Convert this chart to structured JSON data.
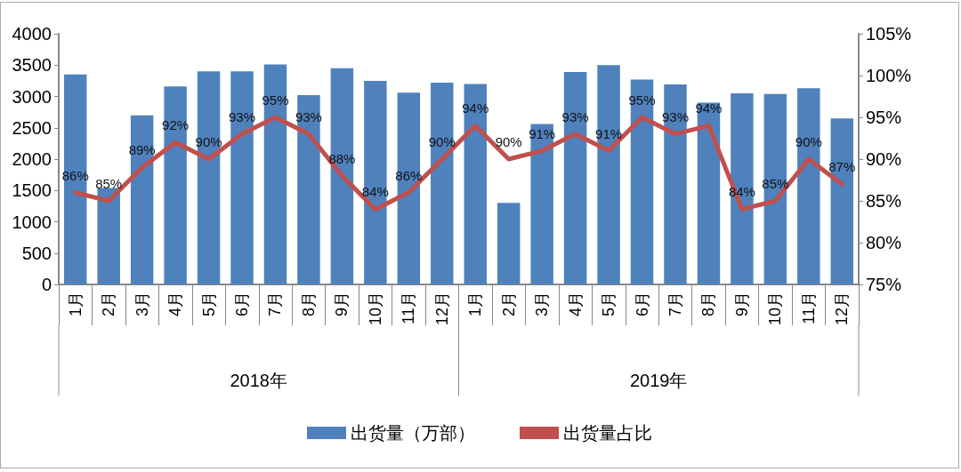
{
  "chart_data": {
    "type": "bar",
    "categories": [
      "1月",
      "2月",
      "3月",
      "4月",
      "5月",
      "6月",
      "7月",
      "8月",
      "9月",
      "10月",
      "11月",
      "12月",
      "1月",
      "2月",
      "3月",
      "4月",
      "5月",
      "6月",
      "7月",
      "8月",
      "9月",
      "10月",
      "11月",
      "12月"
    ],
    "series": [
      {
        "name": "出货量（万部）",
        "color": "#4f81bd",
        "values": [
          3350,
          1540,
          2700,
          3160,
          3400,
          3400,
          3510,
          3020,
          3450,
          3250,
          3060,
          3220,
          3200,
          1300,
          2560,
          3390,
          3500,
          3270,
          3190,
          2900,
          3050,
          3040,
          3130,
          2650
        ]
      },
      {
        "name": "出货量占比",
        "type": "line",
        "axis": "y2",
        "color": "#c0504d",
        "values": [
          86,
          85,
          89,
          92,
          90,
          93,
          95,
          93,
          88,
          84,
          86,
          90,
          94,
          90,
          91,
          93,
          91,
          95,
          93,
          94,
          84,
          85,
          90,
          87
        ],
        "value_labels": [
          "86%",
          "85%",
          "89%",
          "92%",
          "90%",
          "93%",
          "95%",
          "93%",
          "88%",
          "84%",
          "86%",
          "90%",
          "94%",
          "90%",
          "91%",
          "93%",
          "91%",
          "95%",
          "93%",
          "94%",
          "84%",
          "85%",
          "90%",
          "87%"
        ]
      }
    ],
    "ylim": [
      0,
      4000
    ],
    "yticks": [
      0,
      500,
      1000,
      1500,
      2000,
      2500,
      3000,
      3500,
      4000
    ],
    "y2lim": [
      75,
      105
    ],
    "y2ticks": [
      {
        "value": 75,
        "label": "75%"
      },
      {
        "value": 80,
        "label": "80%"
      },
      {
        "value": 85,
        "label": "85%"
      },
      {
        "value": 90,
        "label": "90%"
      },
      {
        "value": 95,
        "label": "95%"
      },
      {
        "value": 100,
        "label": "100%"
      },
      {
        "value": 105,
        "label": "105%"
      }
    ],
    "annotations": [
      "2018年",
      "2019年"
    ],
    "legend": "bottom",
    "grid": false,
    "marker": "none",
    "line_style": "solid"
  }
}
